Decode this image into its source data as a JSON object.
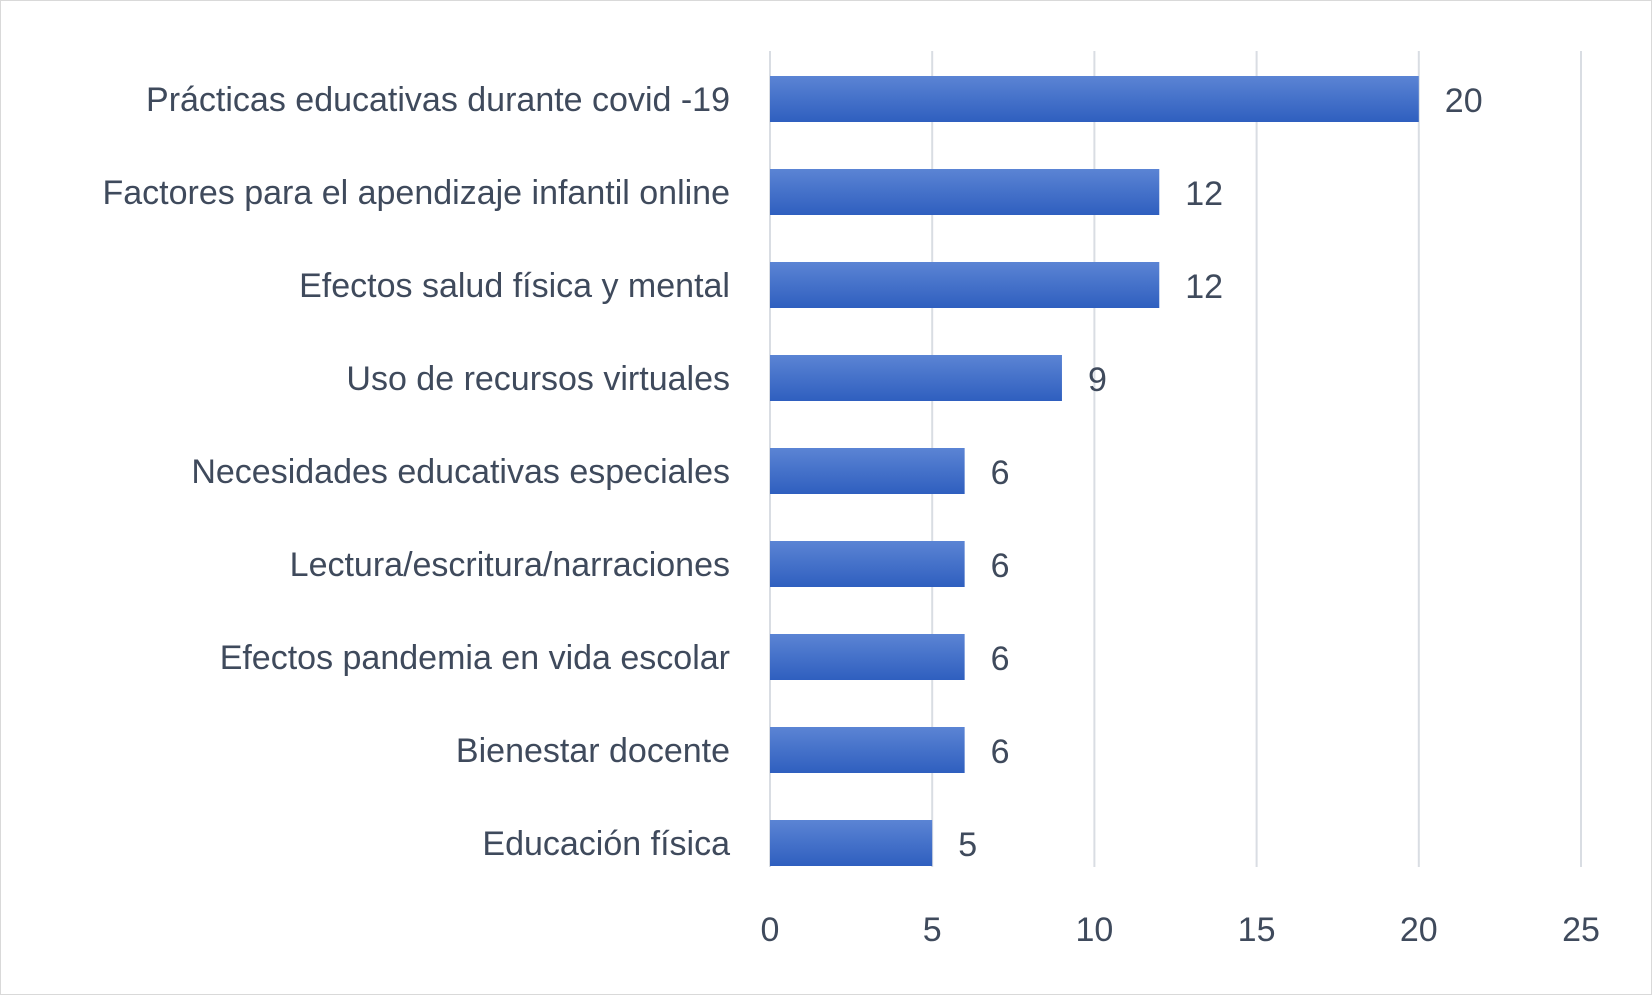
{
  "chart_data": {
    "type": "bar",
    "orientation": "horizontal",
    "categories": [
      "Prácticas educativas durante covid -19",
      "Factores para el apendizaje infantil online",
      "Efectos salud física y mental",
      "Uso de recursos virtuales",
      "Necesidades educativas especiales",
      "Lectura/escritura/narraciones",
      "Efectos pandemia en vida escolar",
      "Bienestar docente",
      "Educación física"
    ],
    "values": [
      20,
      12,
      12,
      9,
      6,
      6,
      6,
      6,
      5
    ],
    "data_labels": [
      "20",
      "12",
      "12",
      "9",
      "6",
      "6",
      "6",
      "6",
      "5"
    ],
    "xlim": [
      0,
      25
    ],
    "x_ticks": [
      "0",
      "5",
      "10",
      "15",
      "20",
      "25"
    ],
    "title": "",
    "xlabel": "",
    "ylabel": "",
    "grid": true,
    "legend": "none",
    "colors": {
      "bar_top": "#5b84d4",
      "bar_bottom": "#2f5fbf",
      "text": "#3f4a5c",
      "grid": "#d9dde3"
    }
  }
}
